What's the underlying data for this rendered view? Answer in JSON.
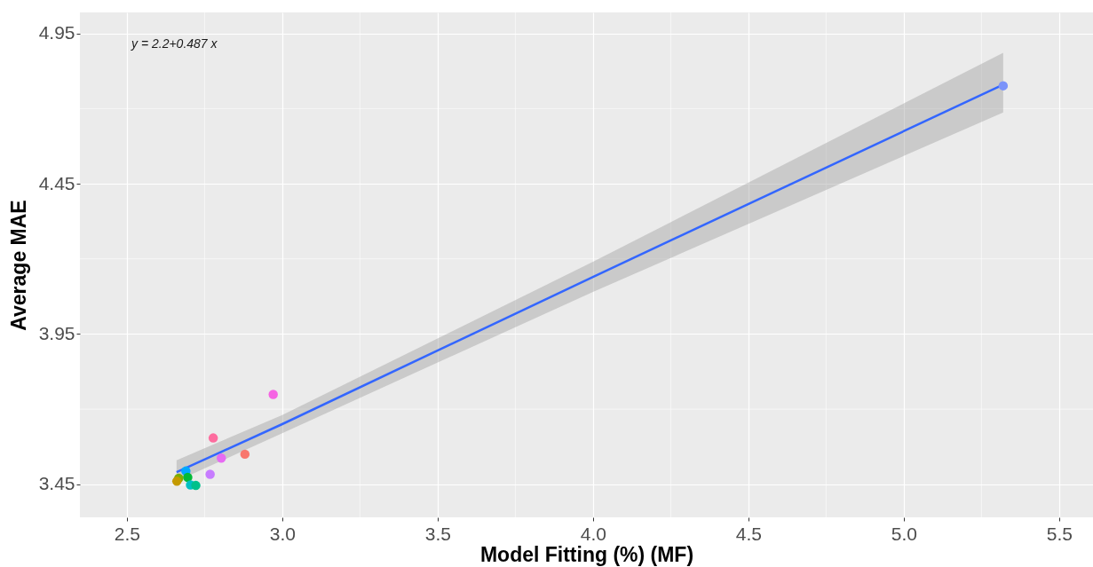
{
  "chart_data": {
    "type": "scatter",
    "xlabel": "Model Fitting (%) (MF)",
    "ylabel": "Average MAE",
    "annotations": [
      "y = 2.2+0.487 x"
    ],
    "xlim": [
      2.349,
      5.609
    ],
    "xticks": [
      2.5,
      {
        "value": 3,
        "label": "3.0"
      },
      3.5,
      {
        "value": 4,
        "label": "4.0"
      },
      4.5,
      {
        "value": 5,
        "label": "5.0"
      },
      5.5
    ],
    "ylim": [
      3.34,
      5.02
    ],
    "yticks": [
      3.45,
      3.95,
      4.45,
      4.95
    ],
    "grid": true,
    "marker": "circle",
    "series": [
      {
        "x": [
          2.971,
          2.778,
          2.88,
          2.804,
          2.768,
          2.69,
          2.696,
          2.667,
          2.661,
          2.705,
          2.722,
          5.32
        ],
        "values": [
          3.749,
          3.604,
          3.55,
          3.537,
          3.483,
          3.494,
          3.473,
          3.47,
          3.46,
          3.448,
          3.446,
          4.776
        ],
        "colors": [
          "#f564e3",
          "#fd6c9e",
          "#f8766d",
          "#e76bf3",
          "#c77cff",
          "#00a9ff",
          "#00ba38",
          "#7cae00",
          "#c49a00",
          "#00bfc4",
          "#00c08b",
          "#7b93fa"
        ]
      },
      {
        "type": "line",
        "color": "#3366ff",
        "marker": "none",
        "x": [
          2.66,
          3.0,
          4.0,
          5.32
        ],
        "values": [
          3.49,
          3.65,
          4.14,
          4.78
        ],
        "lower": [
          3.46,
          3.62,
          4.09,
          4.687
        ],
        "upper": [
          3.53,
          3.68,
          4.19,
          4.886
        ]
      }
    ]
  }
}
